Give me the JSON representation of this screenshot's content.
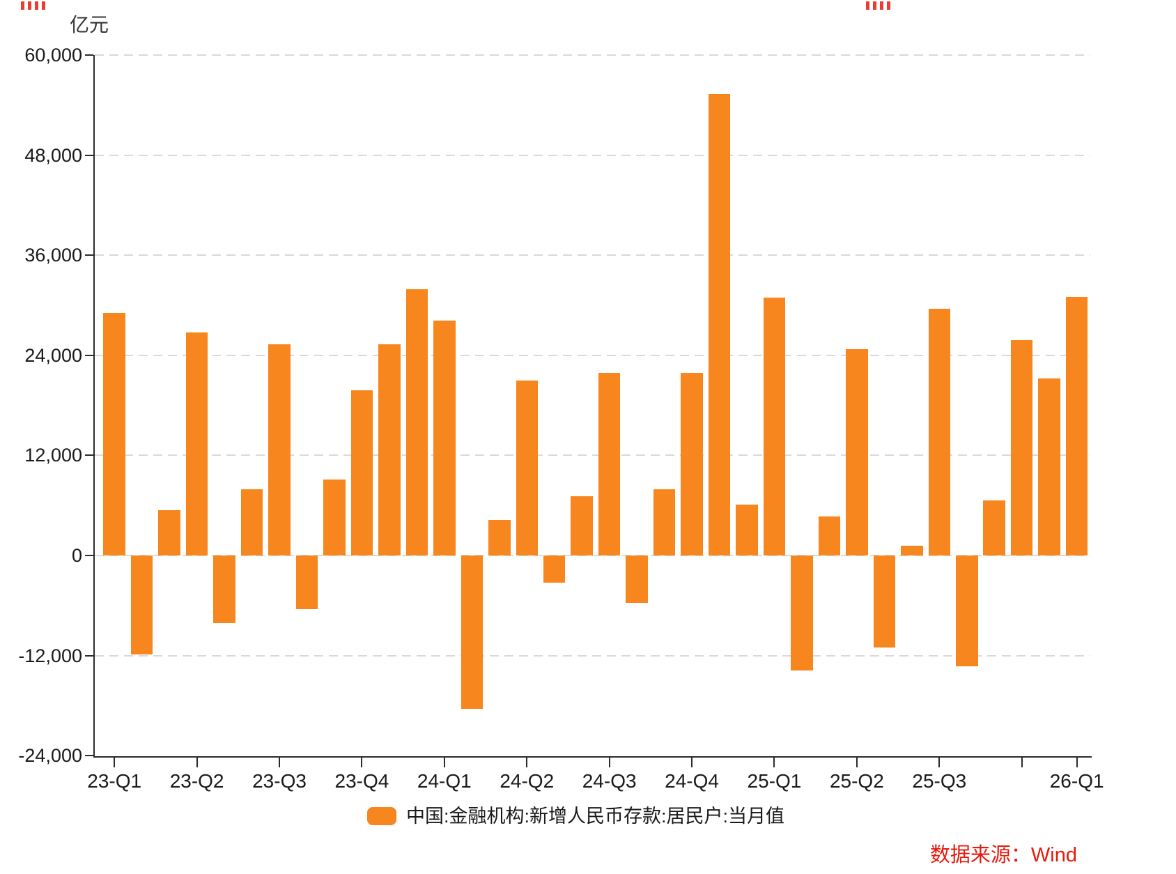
{
  "chart_data": {
    "type": "bar",
    "title": "",
    "unit_label": "亿元",
    "legend_label": "中国:金融机构:新增人民币存款:居民户:当月值",
    "source_label": "数据来源：Wind",
    "bar_color": "#f6861d",
    "grid": "dashed-horizontal",
    "legend_position": "bottom-center",
    "ylim": [
      -24000,
      60000
    ],
    "y_ticks": [
      60000,
      48000,
      36000,
      24000,
      12000,
      0,
      -12000,
      -24000
    ],
    "x": [
      "2023-03",
      "2023-04",
      "2023-05",
      "2023-06",
      "2023-07",
      "2023-08",
      "2023-09",
      "2023-10",
      "2023-11",
      "2023-12",
      "2024-01",
      "2024-02",
      "2024-03",
      "2024-04",
      "2024-05",
      "2024-06",
      "2024-07",
      "2024-08",
      "2024-09",
      "2024-10",
      "2024-11",
      "2024-12",
      "2025-01",
      "2025-02",
      "2025-03",
      "2025-04",
      "2025-05",
      "2025-06",
      "2025-07",
      "2025-08",
      "2025-09",
      "2025-10",
      "2025-11",
      "2025-12",
      "2026-01",
      "2026-02"
    ],
    "values": [
      29100,
      -11900,
      5400,
      26700,
      -8100,
      7900,
      25300,
      -6400,
      9100,
      19800,
      25300,
      31900,
      28200,
      -18400,
      4300,
      21000,
      -3300,
      7100,
      21900,
      -5700,
      7900,
      21900,
      55300,
      6100,
      30900,
      -13800,
      4700,
      24700,
      -11000,
      1200,
      29600,
      -13300,
      6600,
      25800,
      21200,
      31000
    ],
    "x_tick_defs": [
      {
        "index": 0,
        "label": "23-Q1"
      },
      {
        "index": 3,
        "label": "23-Q2"
      },
      {
        "index": 6,
        "label": "23-Q3"
      },
      {
        "index": 9,
        "label": "23-Q4"
      },
      {
        "index": 12,
        "label": "24-Q1"
      },
      {
        "index": 15,
        "label": "24-Q2"
      },
      {
        "index": 18,
        "label": "24-Q3"
      },
      {
        "index": 21,
        "label": "24-Q4"
      },
      {
        "index": 24,
        "label": "25-Q1"
      },
      {
        "index": 27,
        "label": "25-Q2"
      },
      {
        "index": 30,
        "label": "25-Q3"
      },
      {
        "index": 33,
        "label": ""
      },
      {
        "index": 35,
        "label": "26-Q1"
      }
    ]
  }
}
